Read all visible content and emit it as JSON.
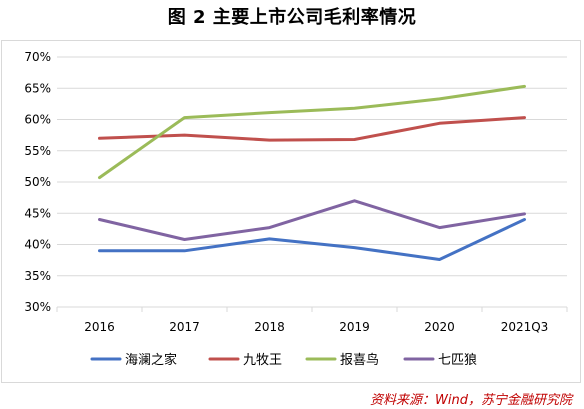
{
  "figure": {
    "title": "图 2  主要上市公司毛利率情况",
    "source": "资料来源：Wind，苏宁金融研究院"
  },
  "chart_data": {
    "type": "line",
    "categories": [
      "2016",
      "2017",
      "2018",
      "2019",
      "2020",
      "2021Q3"
    ],
    "y_ticks": [
      "30%",
      "35%",
      "40%",
      "45%",
      "50%",
      "55%",
      "60%",
      "65%",
      "70%"
    ],
    "ylim": [
      30,
      70
    ],
    "grid": true,
    "legend_position": "bottom",
    "series": [
      {
        "name": "海澜之家",
        "color": "#4472c4",
        "values": [
          39.0,
          39.0,
          40.9,
          39.5,
          37.6,
          44.0
        ]
      },
      {
        "name": "九牧王",
        "color": "#c0504d",
        "values": [
          57.0,
          57.5,
          56.7,
          56.8,
          59.4,
          60.3
        ]
      },
      {
        "name": "报喜鸟",
        "color": "#9bbb59",
        "values": [
          50.7,
          60.3,
          61.1,
          61.8,
          63.3,
          65.3
        ]
      },
      {
        "name": "七匹狼",
        "color": "#8064a2",
        "values": [
          44.0,
          40.8,
          42.7,
          47.0,
          42.7,
          44.9
        ]
      }
    ]
  }
}
